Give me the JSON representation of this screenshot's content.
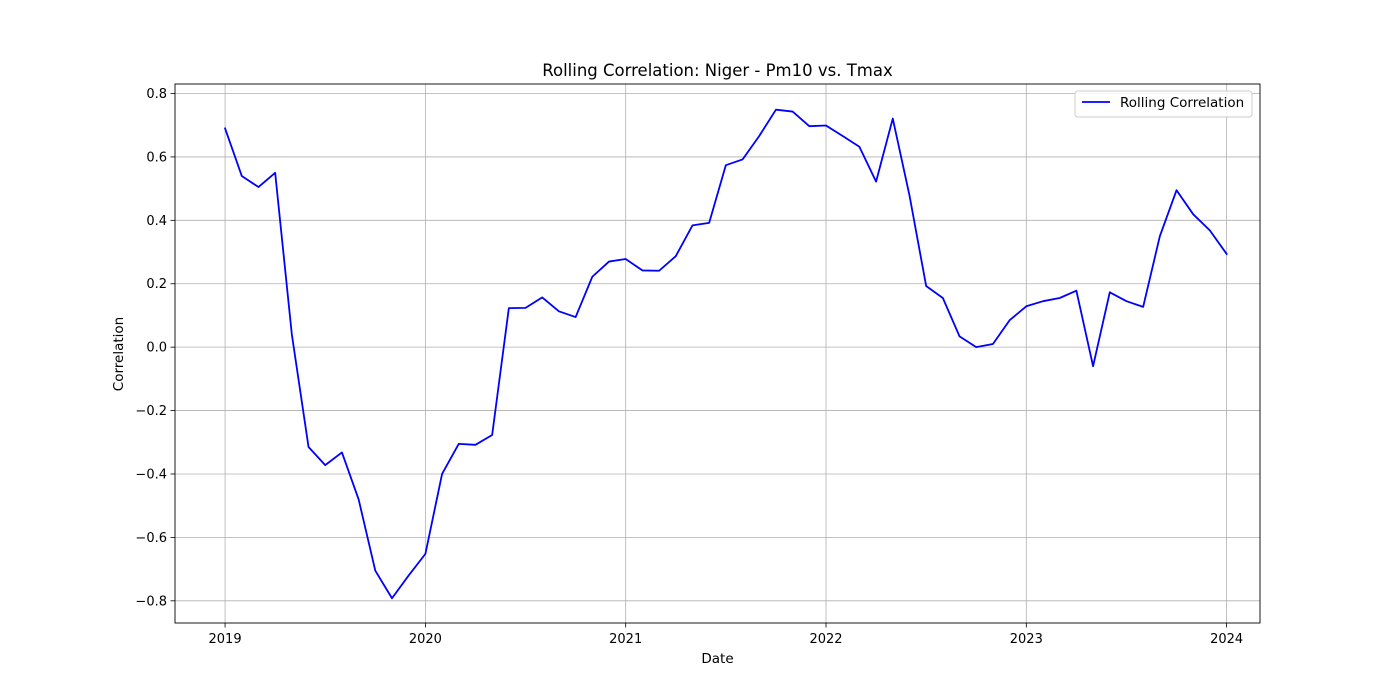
{
  "chart_data": {
    "type": "line",
    "title": "Rolling Correlation: Niger - Pm10 vs. Tmax",
    "xlabel": "Date",
    "ylabel": "Correlation",
    "grid": true,
    "legend_position": "top-right",
    "x_tick_labels": [
      "2019",
      "2020",
      "2021",
      "2022",
      "2023",
      "2024"
    ],
    "y_tick_labels": [
      "−0.8",
      "−0.6",
      "−0.4",
      "−0.2",
      "0.0",
      "0.2",
      "0.4",
      "0.6",
      "0.8"
    ],
    "y_ticks": [
      -0.8,
      -0.6,
      -0.4,
      -0.2,
      0.0,
      0.2,
      0.4,
      0.6,
      0.8
    ],
    "xlim": [
      "2018-10-01",
      "2024-03-01"
    ],
    "ylim": [
      -0.87,
      0.83
    ],
    "series": [
      {
        "name": "Rolling Correlation",
        "color": "#0000ff",
        "x": [
          "2019-01",
          "2019-02",
          "2019-03",
          "2019-04",
          "2019-05",
          "2019-06",
          "2019-07",
          "2019-08",
          "2019-09",
          "2019-10",
          "2019-11",
          "2019-12",
          "2020-01",
          "2020-02",
          "2020-03",
          "2020-04",
          "2020-05",
          "2020-06",
          "2020-07",
          "2020-08",
          "2020-09",
          "2020-10",
          "2020-11",
          "2020-12",
          "2021-01",
          "2021-02",
          "2021-03",
          "2021-04",
          "2021-05",
          "2021-06",
          "2021-07",
          "2021-08",
          "2021-09",
          "2021-10",
          "2021-11",
          "2021-12",
          "2022-01",
          "2022-02",
          "2022-03",
          "2022-04",
          "2022-05",
          "2022-06",
          "2022-07",
          "2022-08",
          "2022-09",
          "2022-10",
          "2022-11",
          "2022-12",
          "2023-01",
          "2023-02",
          "2023-03",
          "2023-04",
          "2023-05",
          "2023-06",
          "2023-07",
          "2023-08",
          "2023-09",
          "2023-10",
          "2023-11",
          "2023-12",
          "2024-01"
        ],
        "values": [
          0.69,
          0.54,
          0.505,
          0.55,
          0.04,
          -0.315,
          -0.372,
          -0.332,
          -0.48,
          -0.705,
          -0.792,
          -0.72,
          -0.652,
          -0.4,
          -0.305,
          -0.308,
          -0.277,
          0.123,
          0.124,
          0.157,
          0.113,
          0.095,
          0.222,
          0.27,
          0.278,
          0.242,
          0.241,
          0.287,
          0.384,
          0.392,
          0.574,
          0.592,
          0.666,
          0.749,
          0.743,
          0.697,
          0.699,
          0.666,
          0.632,
          0.522,
          0.721,
          0.479,
          0.193,
          0.155,
          0.034,
          0.0,
          0.01,
          0.085,
          0.129,
          0.145,
          0.155,
          0.178,
          -0.06,
          0.173,
          0.145,
          0.127,
          0.35,
          0.495,
          0.419,
          0.368,
          0.294
        ]
      }
    ]
  }
}
